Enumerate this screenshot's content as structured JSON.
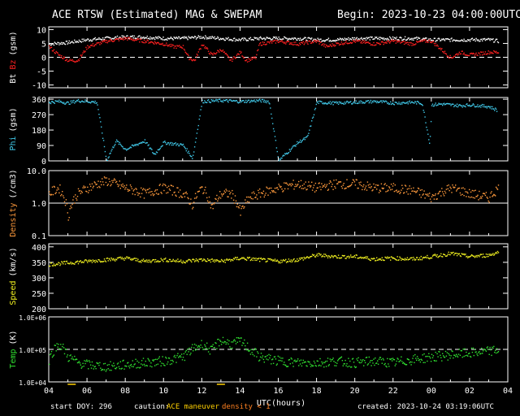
{
  "header": {
    "title": "ACE RTSW (Estimated) MAG & SWEPAM",
    "begin": "Begin: 2023-10-23 04:00:00UTC"
  },
  "footer": {
    "start_doy": "start DOY: 296",
    "caution_label": "caution:",
    "maneuver_label": "ACE maneuver",
    "density_label": "density < 1",
    "created": "created: 2023-10-24 03:19:06UTC"
  },
  "colors": {
    "background": "#000000",
    "axes": "#ffffff",
    "bt": "#ffffff",
    "bz": "#ff2020",
    "phi": "#40c8e8",
    "density": "#ff9a3c",
    "speed": "#f0f020",
    "temp": "#30e030",
    "maneuver": "#ffd000",
    "low_density": "#ff8020"
  },
  "chart_data": [
    {
      "type": "scatter",
      "panel": "mag",
      "ylabel_parts": [
        "Bt",
        "Bz",
        "(gsm)"
      ],
      "ylim": [
        -11,
        11
      ],
      "yticks": [
        10,
        5,
        0,
        -5,
        -10
      ],
      "ref_line": 0,
      "series": [
        {
          "name": "Bt",
          "x": [
            4,
            5,
            6,
            7,
            8,
            9,
            10,
            11,
            12,
            13,
            14,
            15,
            16,
            17,
            18,
            19,
            20,
            21,
            22,
            23,
            24,
            25,
            26,
            27,
            27.5
          ],
          "y": [
            5,
            5.5,
            6.5,
            7,
            7.5,
            7.5,
            7,
            7,
            7.5,
            7,
            6.5,
            7,
            7,
            7,
            6.5,
            6.5,
            7,
            7,
            7,
            7,
            6.5,
            6.5,
            6.5,
            6.5,
            6
          ]
        },
        {
          "name": "Bz",
          "x": [
            4,
            4.5,
            5,
            5.5,
            6,
            7,
            8,
            9,
            10,
            10.5,
            11,
            11.3,
            11.6,
            12,
            12.5,
            13,
            13.5,
            14,
            14.3,
            14.8,
            15,
            16,
            17,
            18,
            18.5,
            19,
            20,
            21,
            22,
            23,
            23.5,
            24,
            24.5,
            25,
            25.5,
            26,
            27,
            27.5
          ],
          "y": [
            4,
            1,
            -1,
            -1,
            4,
            6,
            7,
            6,
            5,
            4,
            4,
            0,
            -1,
            5,
            1,
            3,
            -1,
            2,
            -1,
            0,
            5,
            6,
            5,
            6,
            4,
            5,
            6,
            5,
            6,
            5,
            6,
            6,
            3,
            0,
            2,
            1,
            2,
            2
          ]
        }
      ]
    },
    {
      "type": "scatter",
      "panel": "phi",
      "ylabel_parts": [
        "Phi",
        "(gsm)"
      ],
      "ylim": [
        0,
        370
      ],
      "yticks": [
        360,
        270,
        180,
        90,
        0
      ],
      "series": [
        {
          "name": "Phi",
          "x": [
            4,
            4.5,
            5,
            5.5,
            6,
            6.5,
            7,
            7.5,
            8,
            9,
            9.5,
            10,
            11,
            11.5,
            12,
            13,
            14,
            15,
            15.5,
            16,
            17,
            17.5,
            18,
            19,
            20,
            21,
            22,
            23,
            23.5,
            23.9,
            24,
            24.5,
            25,
            25.5,
            26,
            27,
            27.4
          ],
          "y": [
            345,
            350,
            340,
            355,
            350,
            345,
            5,
            120,
            70,
            120,
            40,
            110,
            95,
            20,
            350,
            355,
            350,
            355,
            350,
            5,
            110,
            140,
            345,
            340,
            345,
            350,
            340,
            345,
            340,
            100,
            330,
            335,
            330,
            325,
            330,
            320,
            300
          ]
        }
      ]
    },
    {
      "type": "scatter",
      "panel": "density",
      "ylabel_parts": [
        "Density",
        "(/cm3)"
      ],
      "yscale": "log",
      "ylim": [
        0.1,
        10
      ],
      "ytick_labels": [
        "10.0",
        "1.0",
        "0.1"
      ],
      "yticks": [
        10,
        1,
        0.1
      ],
      "ref_line": 1,
      "series": [
        {
          "name": "Density",
          "x": [
            4,
            4.5,
            5,
            5.5,
            6,
            7,
            8,
            9,
            10,
            11,
            11.5,
            12,
            12.5,
            13,
            13.5,
            14,
            14.5,
            15,
            16,
            17,
            18,
            19,
            20,
            21,
            22,
            23,
            24,
            25,
            26,
            27,
            27.5
          ],
          "y": [
            2,
            3,
            0.4,
            2,
            3,
            5,
            3,
            2,
            3,
            2,
            0.9,
            3,
            0.7,
            2,
            2,
            0.5,
            1.5,
            2,
            3,
            4,
            3,
            4,
            4,
            3,
            3,
            2.5,
            1.5,
            3,
            2,
            1.5,
            3
          ]
        }
      ]
    },
    {
      "type": "scatter",
      "panel": "speed",
      "ylabel_parts": [
        "Speed",
        "(km/s)"
      ],
      "ylim": [
        200,
        410
      ],
      "yticks": [
        400,
        350,
        300,
        250,
        200
      ],
      "series": [
        {
          "name": "Speed",
          "x": [
            4,
            5,
            6,
            7,
            8,
            9,
            10,
            11,
            12,
            13,
            14,
            15,
            16,
            17,
            18,
            19,
            20,
            21,
            22,
            23,
            24,
            25,
            26,
            27,
            27.5
          ],
          "y": [
            345,
            350,
            355,
            360,
            365,
            355,
            360,
            355,
            360,
            355,
            365,
            360,
            355,
            360,
            375,
            370,
            370,
            362,
            365,
            362,
            370,
            380,
            370,
            375,
            385
          ]
        }
      ]
    },
    {
      "type": "scatter",
      "panel": "temp",
      "ylabel_parts": [
        "Temp",
        "(K)"
      ],
      "yscale": "log",
      "ylim": [
        10000,
        1000000
      ],
      "ytick_labels": [
        "1.0E+06",
        "1.0E+05",
        "1.0E+04"
      ],
      "yticks": [
        1000000,
        100000,
        10000
      ],
      "ref_line": 100000,
      "series": [
        {
          "name": "Temp",
          "x": [
            4,
            4.5,
            5,
            5.5,
            6,
            7,
            8,
            9,
            10,
            11,
            12,
            12.5,
            13,
            13.5,
            14,
            14.5,
            15,
            16,
            17,
            18,
            19,
            20,
            21,
            22,
            23,
            24,
            25,
            26,
            27,
            27.5
          ],
          "y": [
            50000,
            150000,
            60000,
            40000,
            35000,
            30000,
            35000,
            40000,
            45000,
            60000,
            150000,
            90000,
            200000,
            150000,
            180000,
            100000,
            60000,
            45000,
            40000,
            40000,
            45000,
            40000,
            45000,
            40000,
            50000,
            60000,
            70000,
            80000,
            90000,
            100000
          ]
        }
      ]
    }
  ],
  "x_axis": {
    "label": "UTC(hours)",
    "range": [
      4,
      28
    ],
    "tick_labels": [
      "04",
      "06",
      "08",
      "10",
      "12",
      "14",
      "16",
      "18",
      "20",
      "22",
      "00",
      "02",
      "04"
    ],
    "maneuver_marks_hours": [
      5.2,
      13.0
    ]
  }
}
